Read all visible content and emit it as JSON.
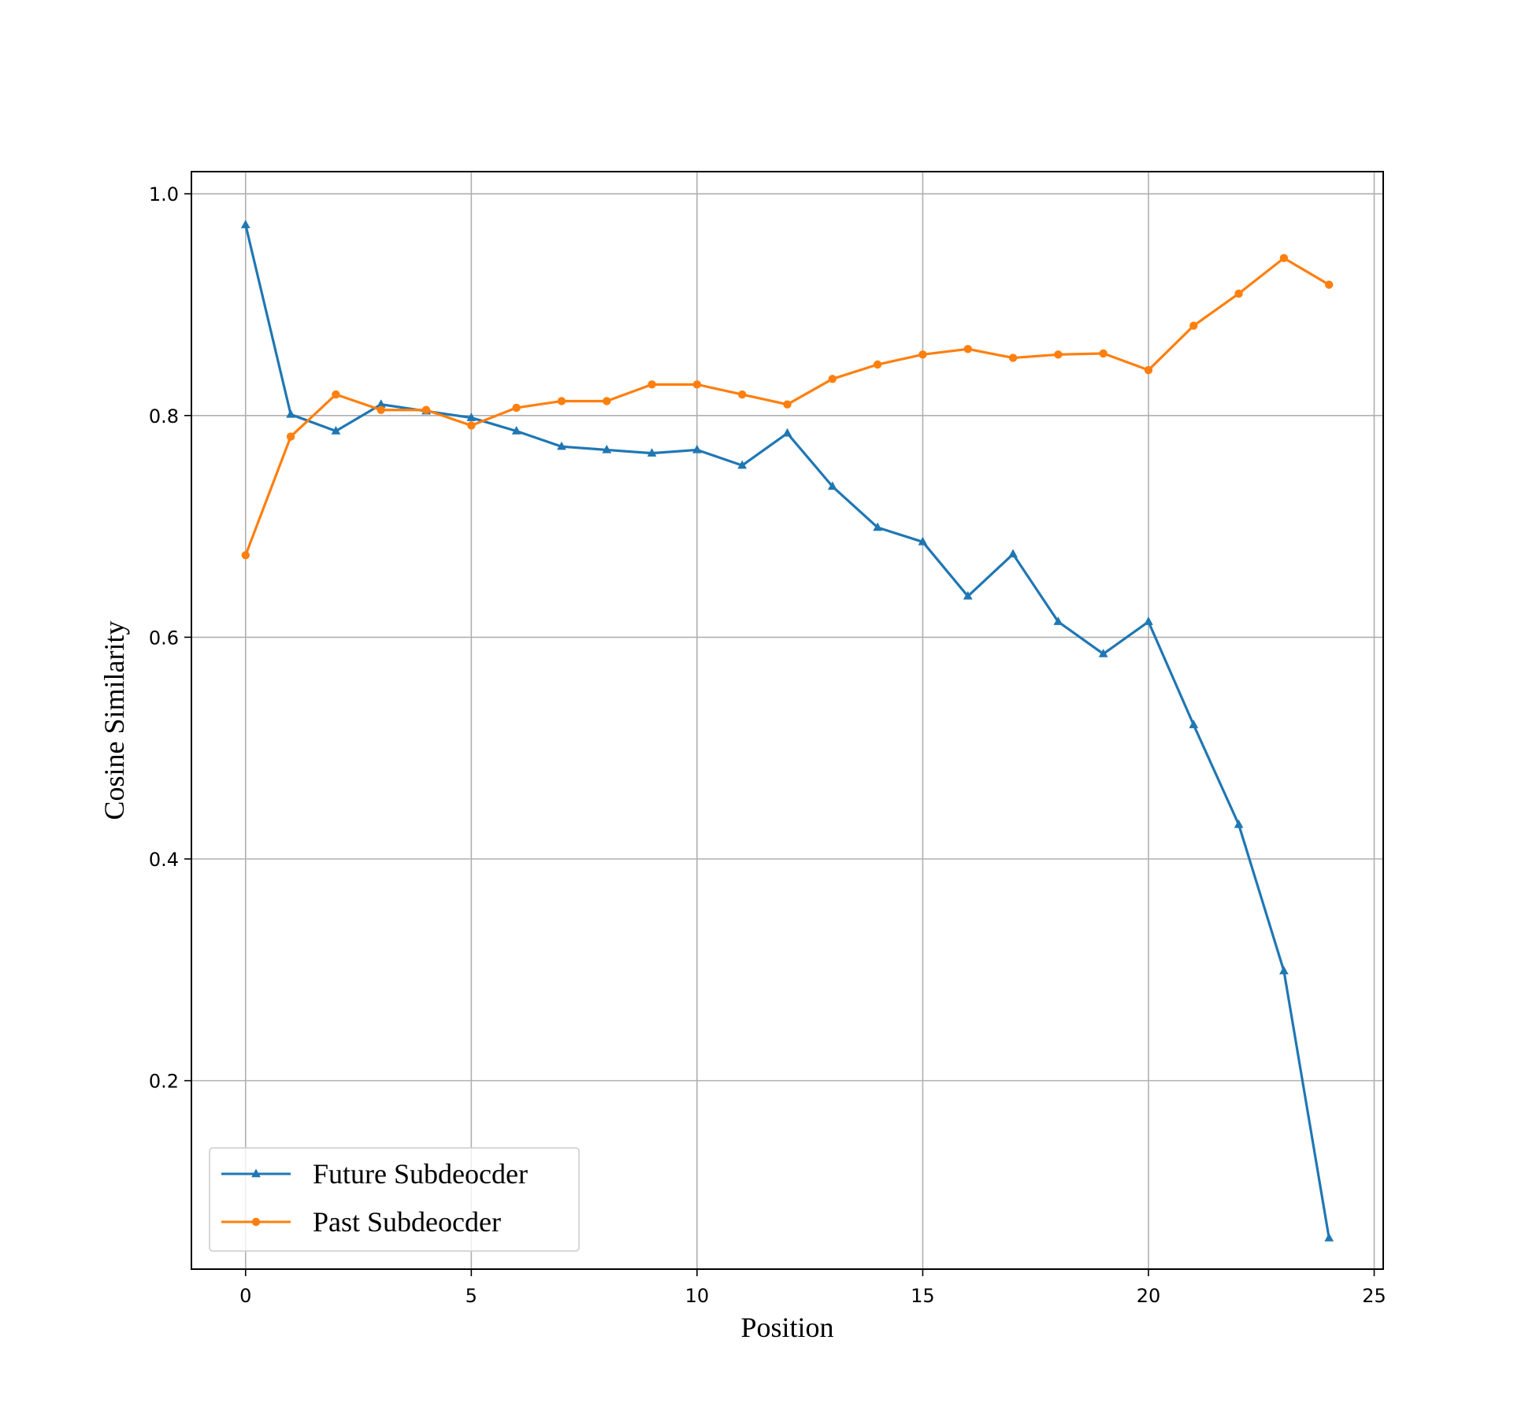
{
  "chart_data": {
    "type": "line",
    "xlabel": "Position",
    "ylabel": "Cosine Similarity",
    "xlim": [
      -1.2,
      25.2
    ],
    "ylim": [
      0.03,
      1.02
    ],
    "xticks": [
      0,
      5,
      10,
      15,
      20,
      25
    ],
    "yticks": [
      0.2,
      0.4,
      0.6,
      0.8,
      1.0
    ],
    "xtick_labels": [
      "0",
      "5",
      "10",
      "15",
      "20",
      "25"
    ],
    "ytick_labels": [
      "0.2",
      "0.4",
      "0.6",
      "0.8",
      "1.0"
    ],
    "grid": true,
    "legend_position": "lower-left",
    "x": [
      0,
      1,
      2,
      3,
      4,
      5,
      6,
      7,
      8,
      9,
      10,
      11,
      12,
      13,
      14,
      15,
      16,
      17,
      18,
      19,
      20,
      21,
      22,
      23,
      24
    ],
    "series": [
      {
        "name": "Future Subdeocder",
        "color": "#1f77b4",
        "marker": "triangle",
        "values": [
          0.972,
          0.801,
          0.786,
          0.81,
          0.804,
          0.798,
          0.786,
          0.772,
          0.769,
          0.766,
          0.769,
          0.755,
          0.784,
          0.736,
          0.699,
          0.686,
          0.637,
          0.675,
          0.614,
          0.585,
          0.614,
          0.521,
          0.431,
          0.299,
          0.058
        ]
      },
      {
        "name": "Past Subdeocder",
        "color": "#ff7f0e",
        "marker": "circle",
        "values": [
          0.674,
          0.781,
          0.819,
          0.805,
          0.805,
          0.791,
          0.807,
          0.813,
          0.813,
          0.828,
          0.828,
          0.819,
          0.81,
          0.833,
          0.846,
          0.855,
          0.86,
          0.852,
          0.855,
          0.856,
          0.841,
          0.881,
          0.91,
          0.942,
          0.918
        ]
      }
    ]
  }
}
